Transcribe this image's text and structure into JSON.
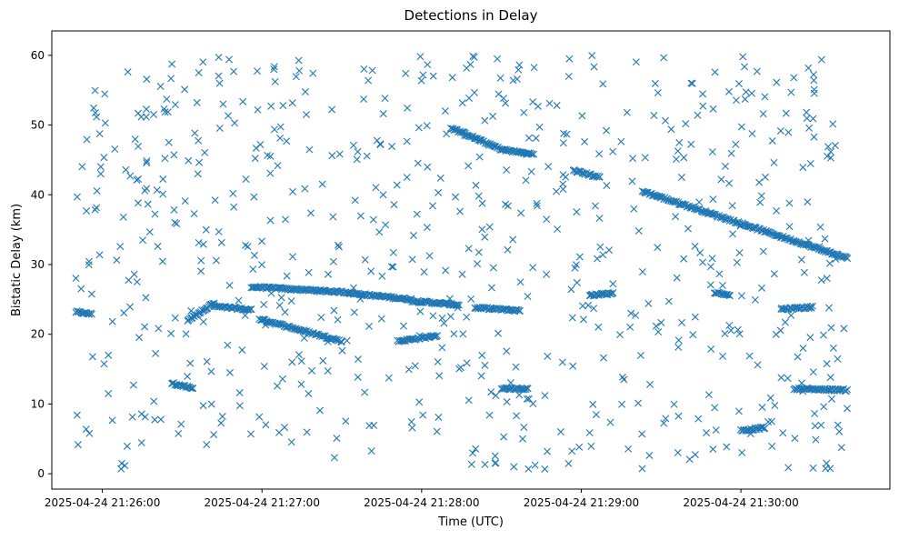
{
  "chart_data": {
    "type": "scatter",
    "title": "Detections in Delay",
    "xlabel": "Time (UTC)",
    "ylabel": "Bistatic Delay (km)",
    "x_unit": "time",
    "xlim": [
      "2025-04-24 21:25:41",
      "2025-04-24 21:30:56"
    ],
    "ylim": [
      -2.2,
      63.5
    ],
    "x_ticks": [
      "2025-04-24 21:26:00",
      "2025-04-24 21:27:00",
      "2025-04-24 21:28:00",
      "2025-04-24 21:29:00",
      "2025-04-24 21:30:00"
    ],
    "y_ticks": [
      0,
      10,
      20,
      30,
      40,
      50,
      60
    ],
    "marker": "x",
    "color": "#1f77b4",
    "grid": false,
    "legend": "none",
    "tracks": [
      {
        "start": "2025-04-24 21:25:50",
        "end": "2025-04-24 21:25:56",
        "y_start": 23.2,
        "y_end": 22.9
      },
      {
        "start": "2025-04-24 21:26:32",
        "end": "2025-04-24 21:26:42",
        "y_start": 22.0,
        "y_end": 24.5
      },
      {
        "start": "2025-04-24 21:26:42",
        "end": "2025-04-24 21:26:56",
        "y_start": 24.0,
        "y_end": 23.5
      },
      {
        "start": "2025-04-24 21:26:26",
        "end": "2025-04-24 21:26:34",
        "y_start": 13.0,
        "y_end": 12.2
      },
      {
        "start": "2025-04-24 21:26:56",
        "end": "2025-04-24 21:27:33",
        "y_start": 26.8,
        "y_end": 26.0
      },
      {
        "start": "2025-04-24 21:27:33",
        "end": "2025-04-24 21:27:56",
        "y_start": 25.9,
        "y_end": 25.0
      },
      {
        "start": "2025-04-24 21:27:56",
        "end": "2025-04-24 21:28:14",
        "y_start": 24.8,
        "y_end": 24.2
      },
      {
        "start": "2025-04-24 21:28:20",
        "end": "2025-04-24 21:28:37",
        "y_start": 23.8,
        "y_end": 23.4
      },
      {
        "start": "2025-04-24 21:26:59",
        "end": "2025-04-24 21:27:30",
        "y_start": 22.2,
        "y_end": 19.0
      },
      {
        "start": "2025-04-24 21:27:51",
        "end": "2025-04-24 21:28:06",
        "y_start": 19.0,
        "y_end": 19.8
      },
      {
        "start": "2025-04-24 21:28:11",
        "end": "2025-04-24 21:28:30",
        "y_start": 49.6,
        "y_end": 46.5
      },
      {
        "start": "2025-04-24 21:28:30",
        "end": "2025-04-24 21:28:42",
        "y_start": 46.5,
        "y_end": 45.8
      },
      {
        "start": "2025-04-24 21:28:57",
        "end": "2025-04-24 21:29:07",
        "y_start": 43.5,
        "y_end": 42.5
      },
      {
        "start": "2025-04-24 21:29:23",
        "end": "2025-04-24 21:30:40",
        "y_start": 40.5,
        "y_end": 30.9
      },
      {
        "start": "2025-04-24 21:28:30",
        "end": "2025-04-24 21:28:40",
        "y_start": 12.2,
        "y_end": 12.2
      },
      {
        "start": "2025-04-24 21:29:03",
        "end": "2025-04-24 21:29:12",
        "y_start": 25.6,
        "y_end": 25.9
      },
      {
        "start": "2025-04-24 21:30:00",
        "end": "2025-04-24 21:30:09",
        "y_start": 6.2,
        "y_end": 6.6
      },
      {
        "start": "2025-04-24 21:30:15",
        "end": "2025-04-24 21:30:27",
        "y_start": 23.6,
        "y_end": 23.9
      },
      {
        "start": "2025-04-24 21:30:20",
        "end": "2025-04-24 21:30:40",
        "y_start": 12.2,
        "y_end": 12.0
      },
      {
        "start": "2025-04-24 21:29:50",
        "end": "2025-04-24 21:29:56",
        "y_start": 26.0,
        "y_end": 25.6
      }
    ],
    "clutter": {
      "count": 700,
      "start": "2025-04-24 21:25:50",
      "end": "2025-04-24 21:30:40",
      "y_min": 0.5,
      "y_max": 60
    }
  }
}
